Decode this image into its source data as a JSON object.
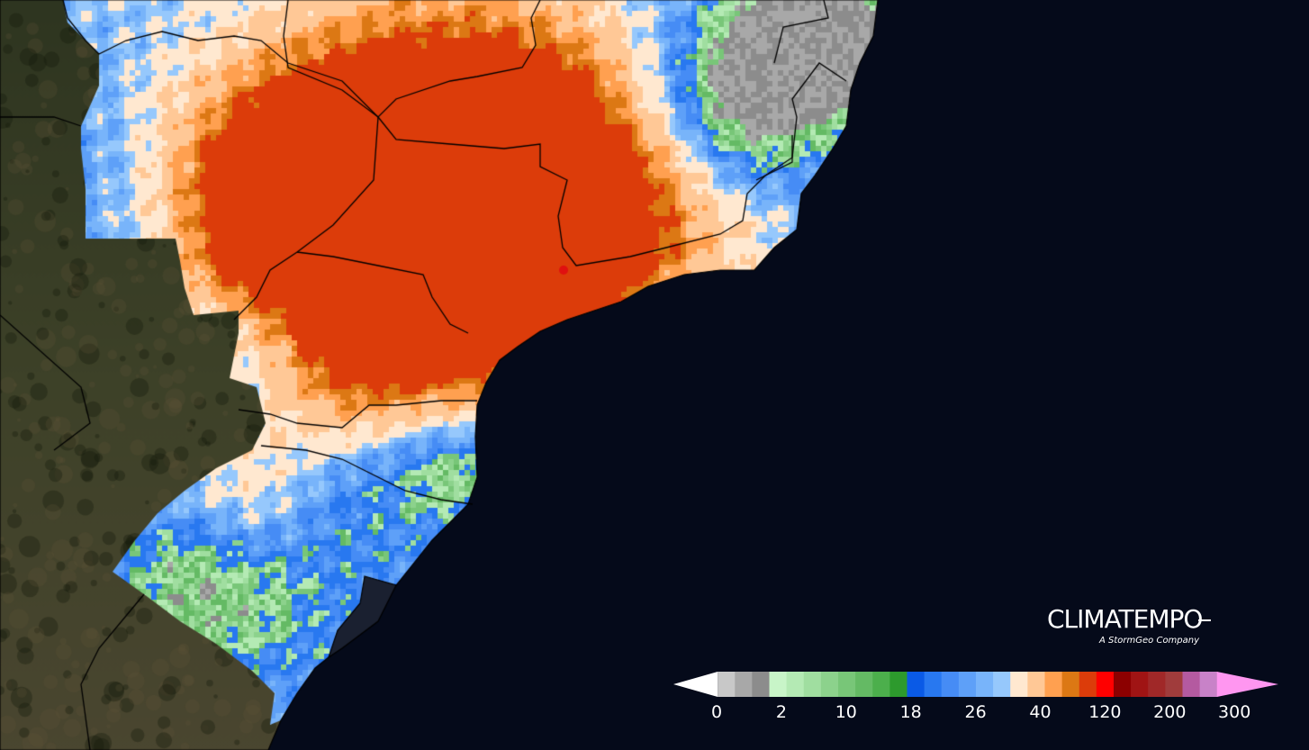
{
  "brand": {
    "name": "CLIMATEMPO",
    "tagline": "A StormGeo Company"
  },
  "legend": {
    "colors": [
      "#ffffff",
      "#c8c8c8",
      "#a8a8a8",
      "#8c8c8c",
      "#c8f5c8",
      "#b4eab4",
      "#a0dea0",
      "#8cd28c",
      "#78c678",
      "#64ba64",
      "#4caf4c",
      "#2d9a2d",
      "#0a5ae6",
      "#2878f0",
      "#468cf5",
      "#5ea0f8",
      "#78b4fa",
      "#96c8fc",
      "#ffe8d0",
      "#ffc896",
      "#ffa050",
      "#dc7814",
      "#dc3c0a",
      "#ff0000",
      "#8c0000",
      "#a01414",
      "#a02828",
      "#a03c3c",
      "#b45aa0",
      "#c882c8",
      "#ff96f0"
    ],
    "labels": [
      {
        "text": "0",
        "index": 1
      },
      {
        "text": "2",
        "index": 5
      },
      {
        "text": "10",
        "index": 9
      },
      {
        "text": "18",
        "index": 13
      },
      {
        "text": "26",
        "index": 17
      },
      {
        "text": "40",
        "index": 21
      },
      {
        "text": "120",
        "index": 25
      },
      {
        "text": "200",
        "index": 29
      },
      {
        "text": "300",
        "index": 33
      }
    ]
  },
  "colors": {
    "ocean": "#050a1a",
    "land": "#3a3d24",
    "border": "#000000"
  }
}
